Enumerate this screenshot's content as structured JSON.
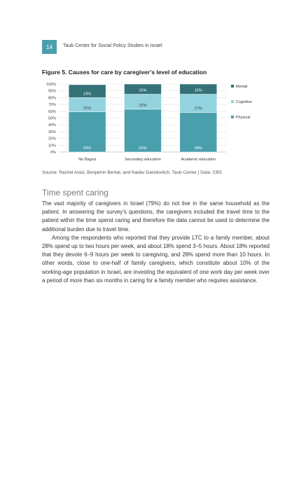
{
  "header": {
    "page_number": "14",
    "running_title": "Taub Center for Social Policy Studies in Israel"
  },
  "figure": {
    "title": "Figure 5. Causes for care by caregiver’s level of education",
    "source": "Source: Rachel Arazi, Benjamin Bental, and Nadav Davidovitch, Taub Center | Data: CBS"
  },
  "chart_data": {
    "type": "bar",
    "stacked": true,
    "categories": [
      "No Bagrut",
      "Secondary education",
      "Academic education"
    ],
    "series": [
      {
        "name": "Physical",
        "values": [
          59,
          63,
          58
        ],
        "labels": [
          "59%",
          "63%",
          "58%"
        ],
        "color": "#4a9fac"
      },
      {
        "name": "Cognitive",
        "values": [
          21,
          22,
          27
        ],
        "labels": [
          "21%",
          "22%",
          "27%"
        ],
        "color": "#93d2df"
      },
      {
        "name": "Mental",
        "values": [
          19,
          15,
          15
        ],
        "labels": [
          "19%",
          "15%",
          "15%"
        ],
        "color": "#347278"
      }
    ],
    "y_ticks": [
      "0%",
      "10%",
      "20%",
      "30%",
      "40%",
      "50%",
      "60%",
      "70%",
      "80%",
      "90%",
      "100%"
    ],
    "ylim": [
      0,
      100
    ],
    "grid": true,
    "legend_position": "right"
  },
  "section": {
    "title": "Time spent caring",
    "paragraphs": [
      "The vast majority of caregivers in Israel (79%) do not live in the same household as the patient. In answering the survey’s questions, the caregivers included the travel time to the patient within the time spend caring and therefore the data cannot be used to determine the additional burden due to travel time.",
      "Among the respondents who reported that they provide LTC to a family member, about 28% spend up to two hours per week, and about 18% spend 3–5 hours. About 18% reported that they devote 6–9 hours per week to caregiving, and 28% spend more than 10 hours. In other words, close to one-half of family caregivers, which constitute about 10% of the working-age population in Israel, are investing the equivalent of one work day per week over a period of more than six months in caring for a family member who requires assistance."
    ]
  }
}
